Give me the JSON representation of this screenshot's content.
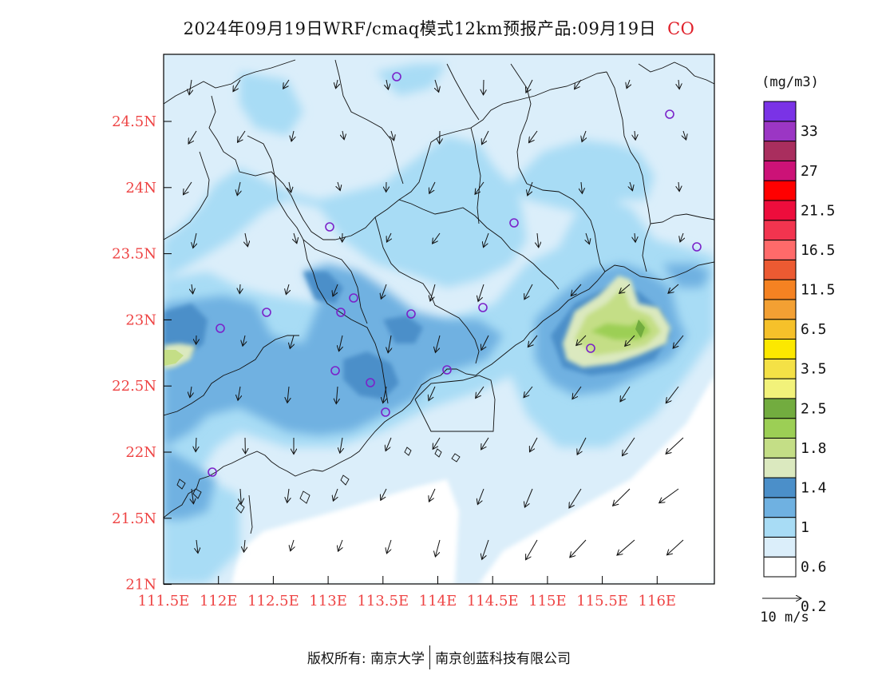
{
  "title": {
    "main": "2024年09月19日WRF/cmaq模式12km预报产品:09月19日",
    "variable": "CO",
    "variable_color": "#e0202a"
  },
  "axes": {
    "lon_labels": [
      "111.5E",
      "112E",
      "112.5E",
      "113E",
      "113.5E",
      "114E",
      "114.5E",
      "115E",
      "115.5E",
      "116E"
    ],
    "lat_labels": [
      "24.5N",
      "24N",
      "23.5N",
      "23N",
      "22.5N",
      "22N",
      "21.5N",
      "21N"
    ],
    "label_color": "#ee4444"
  },
  "legend": {
    "unit": "(mg/m3)",
    "levels": [
      "33",
      "27",
      "21.5",
      "16.5",
      "11.5",
      "6.5",
      "3.5",
      "2.5",
      "1.8",
      "1.4",
      "1",
      "0.6",
      "0.2"
    ],
    "colors_bottom_to_top": [
      "#ffffff",
      "#dbeefa",
      "#a8dcf5",
      "#6fb1e1",
      "#4b8fc9",
      "#dbe9bf",
      "#c4de86",
      "#9ccf55",
      "#72ac3f",
      "#f2f27a",
      "#f4e146",
      "#fce800",
      "#f6c12a",
      "#f3a033",
      "#f58222",
      "#ec5a32",
      "#ff6a6a",
      "#f2344f",
      "#ed0d3c",
      "#ff0000",
      "#cc1277",
      "#a92e5e",
      "#9b36c4",
      "#7a33e6"
    ]
  },
  "wind_reference": {
    "label": "10 m/s"
  },
  "map": {
    "stations_color": "#7b22c9",
    "coast_color": "#111111"
  },
  "footer": {
    "left": "版权所有: 南京大学",
    "right": "南京创蓝科技有限公司"
  }
}
